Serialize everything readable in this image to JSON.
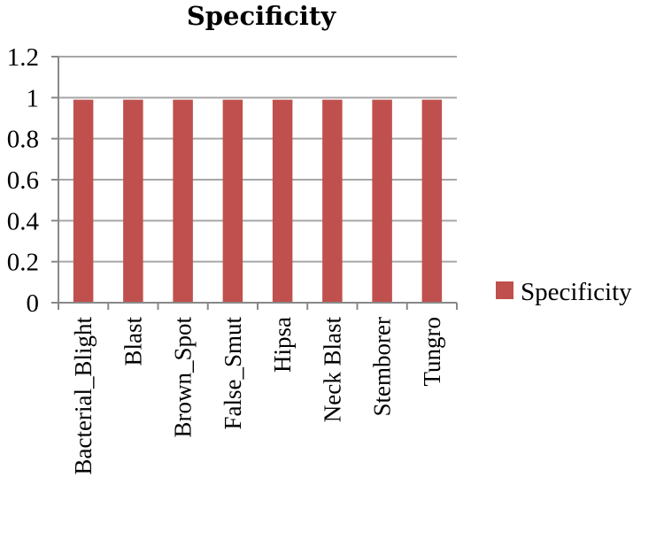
{
  "chart_data": {
    "type": "bar",
    "title": "Specificity",
    "categories": [
      "Bacterial_Blight",
      "Blast",
      "Brown_Spot",
      "False_Smut",
      "Hipsa",
      "Neck Blast",
      "Stemborer",
      "Tungro"
    ],
    "series": [
      {
        "name": "Specificity",
        "values": [
          0.99,
          0.99,
          0.99,
          0.99,
          0.99,
          0.99,
          0.99,
          0.99
        ],
        "color": "#c0504d"
      }
    ],
    "yticks": [
      "0",
      "0.2",
      "0.4",
      "0.6",
      "0.8",
      "1",
      "1.2"
    ],
    "ylim": [
      0,
      1.2
    ],
    "grid": true,
    "legend": "right"
  }
}
